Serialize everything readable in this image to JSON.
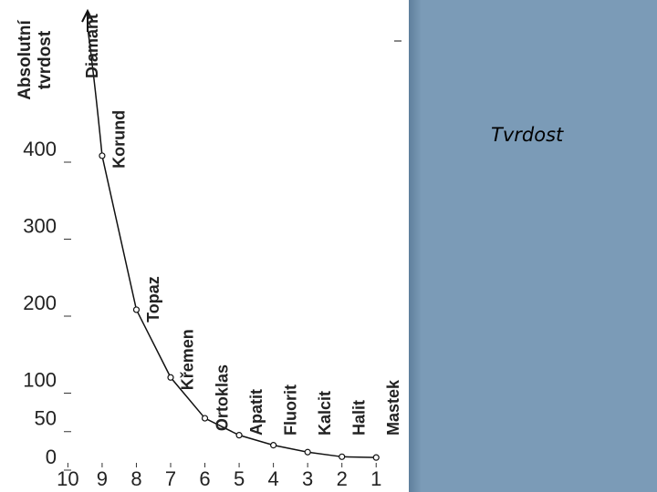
{
  "slide_title": "Tvrdost",
  "chart_data": {
    "type": "line",
    "ylabel_lines": [
      "Absolutní",
      "tvrdost"
    ],
    "x": [
      10,
      9,
      8,
      7,
      6,
      5,
      4,
      3,
      2,
      1
    ],
    "values": [
      null,
      393,
      193,
      105,
      52,
      30,
      17,
      8,
      2,
      1
    ],
    "point_labels": [
      "Diamant",
      "Korund",
      "Topaz",
      "Křemen",
      "Ortoklas",
      "Apatit",
      "Fluorit",
      "Kalcit",
      "Halit",
      "Mastek"
    ],
    "color": "#111111",
    "xlim": [
      10.25,
      0.5
    ],
    "xticks": [
      10,
      9,
      8,
      7,
      6,
      5,
      4,
      3,
      2,
      1
    ],
    "ylim": [
      0,
      400
    ],
    "yticks": [
      0,
      50,
      100,
      200,
      300,
      400
    ]
  }
}
